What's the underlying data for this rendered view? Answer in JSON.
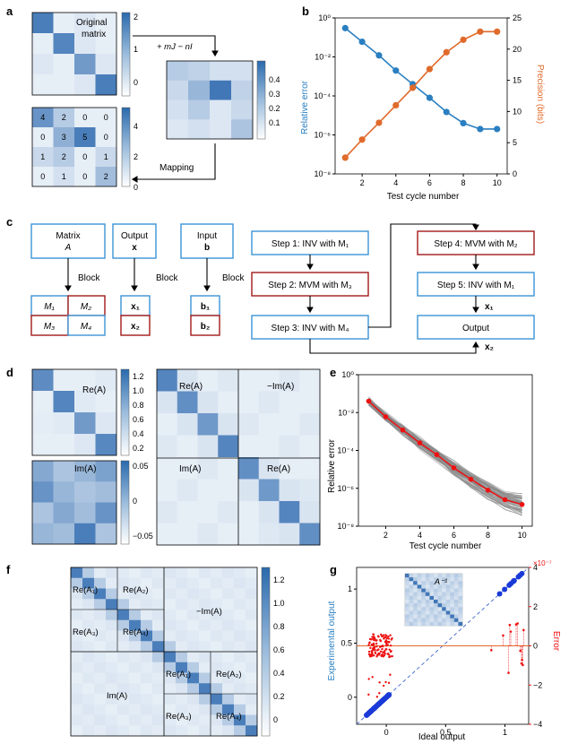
{
  "panel_labels": {
    "a": "a",
    "b": "b",
    "c": "c",
    "d": "d",
    "e": "e",
    "f": "f",
    "g": "g"
  },
  "panel_a": {
    "matrix_label_1": "Original",
    "matrix_label_2": "matrix",
    "transform_label": "+ mJ − nI",
    "mapping_label": "Mapping",
    "original_colorbar_ticks": [
      "2",
      "1",
      "0"
    ],
    "transformed_colorbar_ticks": [
      "0.4",
      "0.3",
      "0.2",
      "0.1"
    ],
    "mapped_colorbar_ticks": [
      "4",
      "2",
      "0"
    ],
    "mapped_values": [
      [
        "4",
        "2",
        "0",
        "0"
      ],
      [
        "0",
        "3",
        "5",
        "0"
      ],
      [
        "1",
        "2",
        "0",
        "1"
      ],
      [
        "0",
        "1",
        "0",
        "2"
      ]
    ]
  },
  "chart_data": [
    {
      "type": "line",
      "panel": "b",
      "xlabel": "Test cycle number",
      "ylabel_left": "Relative error",
      "ylabel_right": "Precision (bits)",
      "x": [
        1,
        2,
        3,
        4,
        5,
        6,
        7,
        8,
        9,
        10
      ],
      "x_ticks": [
        "2",
        "4",
        "6",
        "8",
        "10"
      ],
      "y_left_scale": "log",
      "y_left_ticks": [
        "10⁰",
        "10⁻²",
        "10⁻⁴",
        "10⁻⁶",
        "10⁻⁸"
      ],
      "y_right_ticks": [
        "25",
        "20",
        "15",
        "10",
        "5",
        "0"
      ],
      "series": [
        {
          "axis": "left",
          "color": "#2a7fc1",
          "values": [
            0.3,
            0.06,
            0.012,
            0.002,
            0.0004,
            8e-05,
            1.5e-05,
            4e-06,
            2e-06,
            2e-06
          ]
        },
        {
          "axis": "right",
          "color": "#e06a2b",
          "values": [
            2.6,
            5.5,
            8.2,
            11,
            13.8,
            16.8,
            19.5,
            21.5,
            22.8,
            22.8
          ]
        }
      ]
    },
    {
      "type": "line",
      "panel": "e",
      "xlabel": "Test cycle number",
      "ylabel": "Relative error",
      "x": [
        1,
        2,
        3,
        4,
        5,
        6,
        7,
        8,
        9,
        10
      ],
      "x_ticks": [
        "2",
        "4",
        "6",
        "8",
        "10"
      ],
      "y_scale": "log",
      "y_ticks": [
        "10⁰",
        "10⁻²",
        "10⁻⁴",
        "10⁻⁶",
        "10⁻⁸"
      ],
      "series": [
        {
          "color": "#ee1111",
          "values": [
            0.04,
            0.006,
            0.0012,
            0.00025,
            6e-05,
            1.2e-05,
            3e-06,
            8e-07,
            2.5e-07,
            1.4e-07
          ]
        }
      ]
    },
    {
      "type": "scatter",
      "panel": "g",
      "xlabel": "Ideal output",
      "ylabel_left": "Experimental output",
      "ylabel_right": "Error",
      "right_exponent": "×10⁻⁷",
      "x_ticks": [
        "0",
        "0.5",
        "1"
      ],
      "y_left_ticks": [
        "1",
        "0.5",
        "0"
      ],
      "y_right_ticks": [
        "4",
        "2",
        "0",
        "−2",
        "−4"
      ],
      "inset_label": "A⁻¹"
    }
  ],
  "panel_c": {
    "matrix_title": "Matrix",
    "matrix_symbol": "A",
    "output_title": "Output",
    "output_symbol": "x",
    "input_title": "Input",
    "input_symbol": "b",
    "block_label": "Block",
    "blocks_A": [
      "M₁",
      "M₂",
      "M₃",
      "M₄"
    ],
    "blocks_x": [
      "x₁",
      "x₂"
    ],
    "blocks_b": [
      "b₁",
      "b₂"
    ],
    "steps": [
      "Step 1: INV with M₁",
      "Step 2: MVM with  M₃",
      "Step 3: INV with  M₄",
      "Step 4: MVM with  M₂",
      "Step 5: INV with M₁",
      "Output"
    ],
    "output_x1": "x₁",
    "output_x2": "x₂"
  },
  "panel_d": {
    "re_label": "Re(A)",
    "im_label": "Im(A)",
    "neg_im_label": "−Im(A)",
    "re_colorbar_ticks": [
      "1.2",
      "1.0",
      "0.8",
      "0.6",
      "0.4",
      "0.2"
    ],
    "im_colorbar_ticks": [
      "0.05",
      "0",
      "−0.05"
    ]
  },
  "panel_f": {
    "labels": [
      "Re(A₁)",
      "Re(A₂)",
      "Re(A₃)",
      "Re(A₄)",
      "−Im(A)",
      "Im(A)",
      "Re(A₁)",
      "Re(A₂)",
      "Re(A₃)",
      "Re(A₄)"
    ],
    "colorbar_ticks": [
      "1.2",
      "1.0",
      "0.8",
      "0.6",
      "0.4",
      "0.2",
      "0"
    ]
  },
  "colors": {
    "blue_box": "#3b93d6",
    "red_box": "#a31a1a",
    "heat_dark": "#2f6fad",
    "heat_light": "#eef3f9"
  }
}
